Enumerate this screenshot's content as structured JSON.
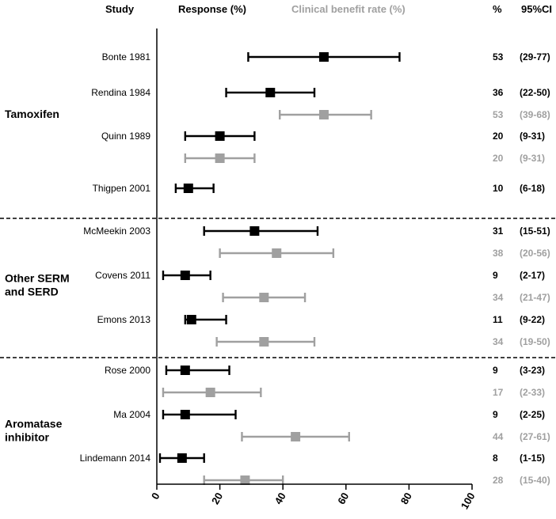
{
  "colors": {
    "response": "#000000",
    "cbr": "#a0a0a0",
    "axis": "#000000"
  },
  "headers": {
    "study": "Study",
    "response": "Response  (%)",
    "cbr": "Clinical benefit rate  (%)",
    "pct": "%",
    "ci": "95%CI"
  },
  "chart_data": {
    "type": "forest",
    "xlim": [
      0,
      100
    ],
    "xticks": [
      "0",
      "20",
      "40",
      "60",
      "80",
      "100"
    ],
    "tick_values": [
      0,
      20,
      40,
      60,
      80,
      100
    ],
    "groups": [
      {
        "lines": [
          "Tamoxifen"
        ]
      },
      {
        "lines": [
          "Other SERM",
          "and SERD"
        ]
      },
      {
        "lines": [
          "Aromatase",
          "inhibitor"
        ]
      }
    ],
    "studies": [
      {
        "name": "Bonte 1981",
        "group": 0,
        "response": {
          "value": 53,
          "low": 29,
          "high": 77,
          "pct": "53",
          "ci": "(29-77)"
        }
      },
      {
        "name": "Rendina 1984",
        "group": 0,
        "response": {
          "value": 36,
          "low": 22,
          "high": 50,
          "pct": "36",
          "ci": "(22-50)"
        },
        "cbr": {
          "value": 53,
          "low": 39,
          "high": 68,
          "pct": "53",
          "ci": "(39-68)"
        }
      },
      {
        "name": "Quinn 1989",
        "group": 0,
        "response": {
          "value": 20,
          "low": 9,
          "high": 31,
          "pct": "20",
          "ci": "(9-31)"
        },
        "cbr": {
          "value": 20,
          "low": 9,
          "high": 31,
          "pct": "20",
          "ci": "(9-31)"
        }
      },
      {
        "name": "Thigpen 2001",
        "group": 0,
        "response": {
          "value": 10,
          "low": 6,
          "high": 18,
          "pct": "10",
          "ci": "(6-18)"
        }
      },
      {
        "name": "McMeekin 2003",
        "group": 1,
        "response": {
          "value": 31,
          "low": 15,
          "high": 51,
          "pct": "31",
          "ci": "(15-51)"
        },
        "cbr": {
          "value": 38,
          "low": 20,
          "high": 56,
          "pct": "38",
          "ci": "(20-56)"
        }
      },
      {
        "name": "Covens 2011",
        "group": 1,
        "response": {
          "value": 9,
          "low": 2,
          "high": 17,
          "pct": "9",
          "ci": "(2-17)"
        },
        "cbr": {
          "value": 34,
          "low": 21,
          "high": 47,
          "pct": "34",
          "ci": "(21-47)"
        }
      },
      {
        "name": "Emons 2013",
        "group": 1,
        "response": {
          "value": 11,
          "low": 9,
          "high": 22,
          "pct": "11",
          "ci": "(9-22)"
        },
        "cbr": {
          "value": 34,
          "low": 19,
          "high": 50,
          "pct": "34",
          "ci": "(19-50)"
        }
      },
      {
        "name": "Rose 2000",
        "group": 2,
        "response": {
          "value": 9,
          "low": 3,
          "high": 23,
          "pct": "9",
          "ci": "(3-23)"
        },
        "cbr": {
          "value": 17,
          "low": 2,
          "high": 33,
          "pct": "17",
          "ci": "(2-33)"
        }
      },
      {
        "name": "Ma 2004",
        "group": 2,
        "response": {
          "value": 9,
          "low": 2,
          "high": 25,
          "pct": "9",
          "ci": "(2-25)"
        },
        "cbr": {
          "value": 44,
          "low": 27,
          "high": 61,
          "pct": "44",
          "ci": "(27-61)"
        }
      },
      {
        "name": "Lindemann 2014",
        "group": 2,
        "response": {
          "value": 8,
          "low": 1,
          "high": 15,
          "pct": "8",
          "ci": "(1-15)"
        },
        "cbr": {
          "value": 28,
          "low": 15,
          "high": 40,
          "pct": "28",
          "ci": "(15-40)"
        }
      }
    ]
  }
}
